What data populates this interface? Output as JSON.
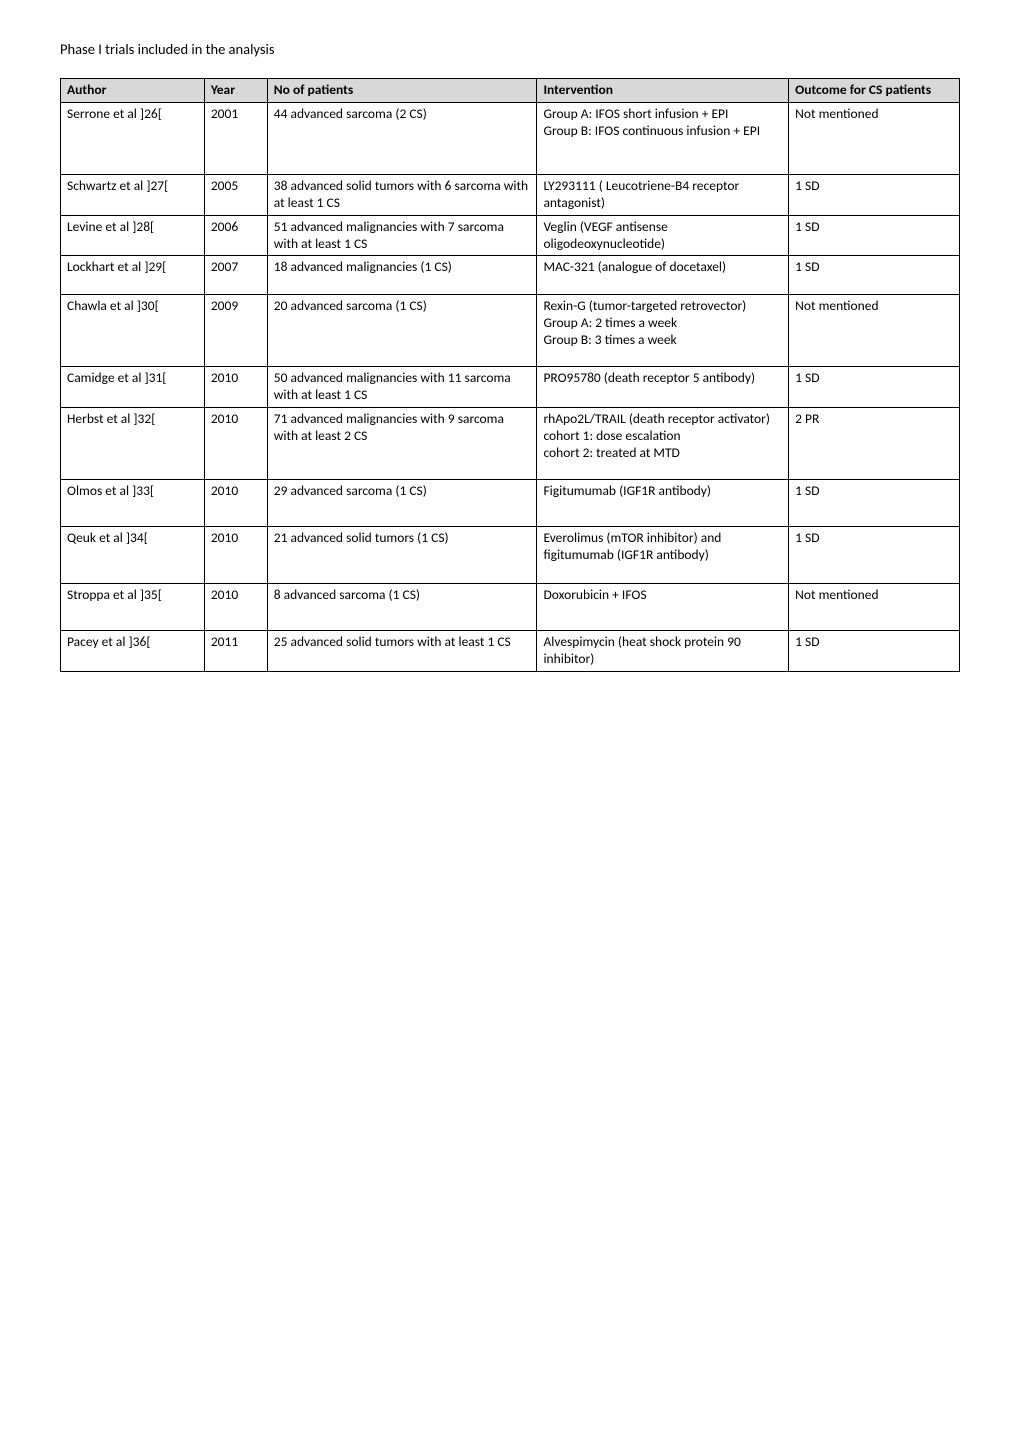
{
  "title": "Phase I trials included in the analysis",
  "table": {
    "columns": [
      "Author",
      "Year",
      "No of patients",
      "Intervention",
      "Outcome for CS patients"
    ],
    "rows": [
      {
        "author": "Serrone et al ]26[",
        "year": "2001",
        "patients": "44 advanced sarcoma (2 CS)",
        "intervention": "Group A: IFOS short infusion + EPI\nGroup B: IFOS continuous infusion + EPI",
        "outcome": "Not mentioned"
      },
      {
        "author": "Schwartz et al ]27[",
        "year": "2005",
        "patients": "38 advanced solid tumors with 6 sarcoma with at least 1 CS",
        "intervention": "LY293111 ( Leucotriene-B4 receptor antagonist)",
        "outcome": "1 SD"
      },
      {
        "author": "Levine et al ]28[",
        "year": "2006",
        "patients": "51 advanced malignancies with 7 sarcoma  with at least 1 CS",
        "intervention": "Veglin (VEGF antisense oligodeoxynucleotide)",
        "outcome": "1 SD"
      },
      {
        "author": "Lockhart et al ]29[",
        "year": "2007",
        "patients": "18 advanced malignancies (1 CS)",
        "intervention": "MAC-321 (analogue of docetaxel)",
        "outcome": "1 SD"
      },
      {
        "author": "Chawla et al ]30[",
        "year": "2009",
        "patients": "20 advanced sarcoma (1 CS)",
        "intervention": "Rexin-G (tumor-targeted retrovector)\nGroup A: 2 times a week\nGroup B: 3 times a week",
        "outcome": "Not mentioned"
      },
      {
        "author": "Camidge et al ]31[",
        "year": "2010",
        "patients": "50 advanced malignancies with 11 sarcoma with at least 1 CS",
        "intervention": "PRO95780 (death receptor 5 antibody)",
        "outcome": "1 SD"
      },
      {
        "author": "Herbst et al ]32[",
        "year": "2010",
        "patients": "71 advanced malignancies with 9 sarcoma with at least 2 CS",
        "intervention": "rhApo2L/TRAIL (death receptor activator)\ncohort 1: dose escalation\ncohort 2: treated at MTD",
        "outcome": "2 PR"
      },
      {
        "author": "Olmos et al ]33[",
        "year": "2010",
        "patients": "29 advanced sarcoma (1 CS)",
        "intervention": "Figitumumab (IGF1R antibody)",
        "outcome": "1 SD"
      },
      {
        "author": "Qeuk et al ]34[",
        "year": "2010",
        "patients": "21 advanced solid tumors (1 CS)",
        "intervention": "Everolimus (mTOR inhibitor) and figitumumab (IGF1R antibody)",
        "outcome": "1 SD"
      },
      {
        "author": "Stroppa et al ]35[",
        "year": "2010",
        "patients": "8 advanced sarcoma (1 CS)",
        "intervention": "Doxorubicin + IFOS",
        "outcome": "Not mentioned"
      },
      {
        "author": "Pacey et al ]36[",
        "year": "2011",
        "patients": "25 advanced solid tumors with at least 1 CS",
        "intervention": "Alvespimycin (heat shock protein 90 inhibitor)",
        "outcome": "1 SD"
      }
    ]
  },
  "row_min_heights": [
    65,
    32,
    32,
    32,
    65,
    32,
    65,
    40,
    50,
    40,
    32
  ]
}
